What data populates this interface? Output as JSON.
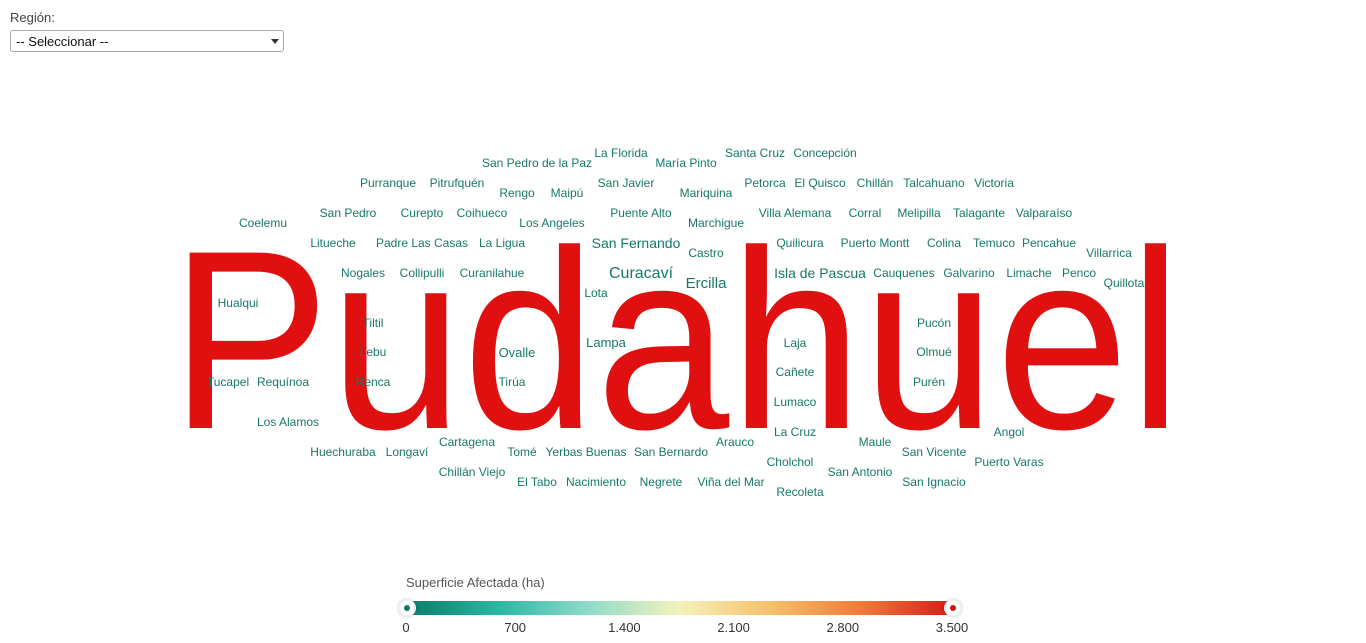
{
  "filter": {
    "label": "Región:",
    "selected": "-- Seleccionar --"
  },
  "wordcloud": {
    "highlight_word": "Pudahuel",
    "highlight_color": "#e01010",
    "word_color": "#177868",
    "words": [
      "San Pedro de la Paz",
      "La Florida",
      "María Pinto",
      "Santa Cruz",
      "Concepción",
      "Purranque",
      "Pitrufquén",
      "Rengo",
      "Maipú",
      "San Javier",
      "Mariquina",
      "Petorca",
      "El Quisco",
      "Chillán",
      "Talcahuano",
      "Victoria",
      "Coelemu",
      "San Pedro",
      "Curepto",
      "Coihueco",
      "Los Angeles",
      "Puente Alto",
      "Marchigue",
      "Villa Alemana",
      "Corral",
      "Melipilla",
      "Talagante",
      "Valparaíso",
      "Litueche",
      "Padre Las Casas",
      "La Ligua",
      "San Fernando",
      "Castro",
      "Quilicura",
      "Puerto Montt",
      "Colina",
      "Temuco",
      "Pencahue",
      "Villarrica",
      "Nogales",
      "Collipulli",
      "Curanilahue",
      "Curacaví",
      "Ercilla",
      "Isla de Pascua",
      "Cauquenes",
      "Galvarino",
      "Limache",
      "Penco",
      "Quillota",
      "Lota",
      "Hualqui",
      "Tiltil",
      "Pucón",
      "Lebu",
      "Ovalle",
      "Lampa",
      "Laja",
      "Olmué",
      "Tucapel",
      "Requínoa",
      "Renca",
      "Tirúa",
      "Cañete",
      "Purén",
      "Lumaco",
      "Los Alamos",
      "La Cruz",
      "Angol",
      "Cartagena",
      "Arauco",
      "Maule",
      "Huechuraba",
      "Longaví",
      "Tomé",
      "Yerbas Buenas",
      "San Bernardo",
      "San Vicente",
      "Chillán Viejo",
      "Cholchol",
      "Puerto Varas",
      "San Antonio",
      "El Tabo",
      "Nacimiento",
      "Negrete",
      "Viña del Mar",
      "San Ignacio",
      "Recoleta"
    ]
  },
  "legend": {
    "title": "Superficie Afectada (ha)",
    "range": [
      0,
      3500
    ],
    "gradient": [
      "#0b7a66",
      "#2ab5a5",
      "#8edcc8",
      "#f4f2bd",
      "#f6c16b",
      "#ee7a3a",
      "#d61a1a"
    ],
    "ticks": [
      "0",
      "700",
      "1.400",
      "2.100",
      "2.800",
      "3.500"
    ]
  }
}
